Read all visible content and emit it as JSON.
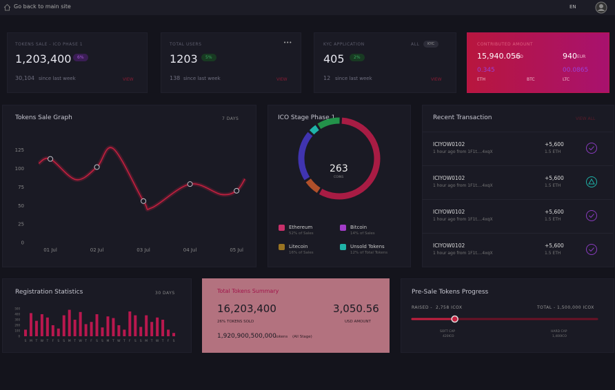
{
  "topbar": {
    "back_link": "Go back to main site",
    "language": "EN"
  },
  "stats": [
    {
      "label": "TOKENS SALE - ICO PHASE 1",
      "value": "1,203,400",
      "change": "6%",
      "sub_value": "30,104",
      "sub_text": "since last week",
      "link": "VIEW"
    },
    {
      "label": "TOTAL USERS",
      "value": "1203",
      "change": "5%",
      "sub_value": "138",
      "sub_text": "since last week",
      "link": "VIEW",
      "menu": "•••"
    },
    {
      "label": "KYC APPLICATION",
      "value": "405",
      "change": "2%",
      "sub_value": "12",
      "sub_text": "since last week",
      "link": "VIEW",
      "tabs": [
        "ALL",
        "KYC"
      ]
    }
  ],
  "contributed": {
    "label": "CONTRIBUTED AMOUNT",
    "usd_value": "15,940.056",
    "usd_unit": "USD",
    "eur_value": "940",
    "eur_unit": "EUR",
    "coins": [
      {
        "value": "0.345",
        "unit": "ETH"
      },
      {
        "unit": "BTC"
      },
      {
        "value": "00.0865",
        "unit": "LTC"
      }
    ]
  },
  "token_graph": {
    "title": "Tokens Sale Graph",
    "range": "7 DAYS",
    "color": "#c4203f",
    "x": [
      0.75,
      1,
      1.55,
      2,
      2.35,
      3,
      3.18,
      4,
      4.67,
      5,
      5.18
    ],
    "y": [
      107,
      113,
      85,
      102,
      127,
      56,
      47,
      79,
      65,
      70,
      86
    ],
    "xlim": [
      0.6,
      5.25
    ],
    "ylim": [
      0,
      135
    ],
    "yticks": [
      0,
      25,
      50,
      75,
      100,
      125
    ],
    "xticks": [
      {
        "value": 1,
        "label": "01 Jul"
      },
      {
        "value": 2,
        "label": "02 Jul"
      },
      {
        "value": 3,
        "label": "03 Jul"
      },
      {
        "value": 4,
        "label": "04 Jul"
      },
      {
        "value": 5,
        "label": "05 Jul"
      }
    ]
  },
  "ico_stage": {
    "title": "ICO Stage Phase 1",
    "total": "263",
    "unit": "COINS",
    "segments": [
      {
        "value": 58,
        "color": "#a81c44"
      },
      {
        "value": 7,
        "color": "#b0502a"
      },
      {
        "value": 21,
        "color": "#4034b0"
      },
      {
        "value": 4,
        "color": "#1fb3a8"
      },
      {
        "value": 10,
        "color": "#23924a"
      }
    ],
    "legend": [
      {
        "name": "Ethereum",
        "note": "52% of Sales",
        "color": "#c8306a"
      },
      {
        "name": "Bitcoin",
        "note": "14% of Sales",
        "color": "#a23cc8"
      },
      {
        "name": "Litecoin",
        "note": "16% of Sales",
        "color": "#9a7422"
      },
      {
        "name": "Unsold Tokens",
        "note": "12% of Total Tokens",
        "color": "#1fb3a8"
      }
    ]
  },
  "transactions": {
    "title": "Recent Transaction",
    "link": "VIEW ALL",
    "rows": [
      {
        "id": "ICIYOW0102",
        "meta": "1 hour ago from 1F1t....4xqX",
        "amount": "+5,600",
        "coin": "1.5 ETH"
      },
      {
        "id": "ICIYOW0102",
        "meta": "1 hour ago from 1F1t....4xqX",
        "amount": "+5,600",
        "coin": "1.5 ETH"
      },
      {
        "id": "ICIYOW0102",
        "meta": "1 hour ago from 1F1t....4xqX",
        "amount": "+5,600",
        "coin": "1.5 ETH"
      },
      {
        "id": "ICIYOW0102",
        "meta": "1 hour ago from 1F1t....4xqX",
        "amount": "+5,600",
        "coin": "1.5 ETH"
      }
    ]
  },
  "registration": {
    "title": "Registration Statistics",
    "range": "30 DAYS",
    "color": "#b8184e",
    "categories": [
      "S",
      "M",
      "T",
      "W",
      "T",
      "F",
      "S",
      "S",
      "M",
      "T",
      "W",
      "T",
      "F",
      "S",
      "S",
      "M",
      "T",
      "W",
      "T",
      "F",
      "S",
      "S",
      "M",
      "T",
      "W",
      "T",
      "F",
      "S"
    ],
    "values": [
      120,
      420,
      280,
      400,
      340,
      200,
      140,
      380,
      480,
      300,
      440,
      220,
      260,
      400,
      160,
      360,
      330,
      200,
      120,
      450,
      380,
      170,
      380,
      260,
      340,
      300,
      120,
      60
    ],
    "ylim": [
      0,
      500
    ],
    "yticks": [
      0,
      100,
      200,
      300,
      400,
      500
    ]
  },
  "summary": {
    "title": "Total Tokens Summary",
    "tokens": "16,203,400",
    "tokens_label": "26% TOKENS SOLD",
    "usd": "3,050.56",
    "usd_label": "USD AMOUNT",
    "all_tokens": "1,920,900,500,000",
    "all_unit": "tokens",
    "all_note": "(All Stage)"
  },
  "presale": {
    "title": "Pre-Sale Tokens Progress",
    "raised_label": "RAISED -",
    "raised": "2,758 ICOX",
    "total_label": "TOTAL -",
    "total": "1,500,000 ICOX",
    "progress": 23,
    "soft_cap_label": "SOFT CAP",
    "soft_cap": "420ICO",
    "hard_cap_label": "HARD CAP",
    "hard_cap": "1,400ICO"
  }
}
